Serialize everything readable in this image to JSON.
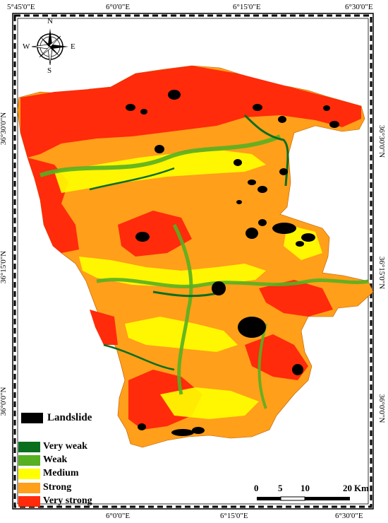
{
  "map": {
    "top_coords": [
      "5°45'0\"E",
      "6°0'0\"E",
      "6°15'0\"E",
      "6°30'0\"E"
    ],
    "bottom_coords": [
      "6°0'0\"E",
      "6°15'0\"E",
      "6°30'0\"E"
    ],
    "left_coords": [
      "36°30'0\"N",
      "36°15'0\"N",
      "36°0'0\"N"
    ],
    "right_coords": [
      "36°30'0\"N",
      "36°15'0\"N",
      "36°0'0\"N"
    ],
    "compass": {
      "n": "N",
      "s": "S",
      "e": "E",
      "w": "W"
    },
    "legend": {
      "landslide_label": "Landslide",
      "landslide_color": "#000000",
      "classes": [
        {
          "label": "Very weak",
          "color": "#0a6e1f"
        },
        {
          "label": "Weak",
          "color": "#56b021"
        },
        {
          "label": "Medium",
          "color": "#ffff00"
        },
        {
          "label": "Strong",
          "color": "#ff9f1a"
        },
        {
          "label": "Very strong",
          "color": "#ff2b0a"
        }
      ]
    },
    "scale": {
      "ticks": [
        "0",
        "5",
        "10",
        "20"
      ],
      "unit": "Km"
    }
  }
}
